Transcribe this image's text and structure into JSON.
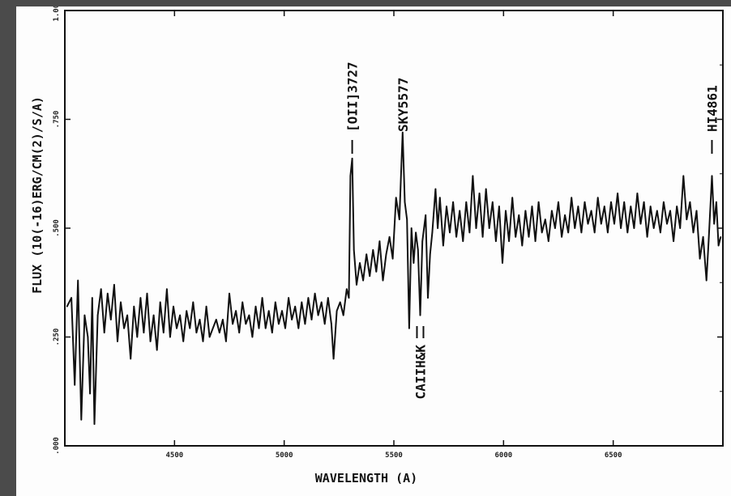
{
  "chart_data": {
    "type": "line",
    "title": "",
    "xlabel": "WAVELENGTH (A)",
    "ylabel": "FLUX (10(-16)ERG/CM(2)/S/A)",
    "xlim": [
      4000,
      7000
    ],
    "ylim": [
      0,
      1.0
    ],
    "xticks": [
      4500,
      5000,
      5500,
      6000,
      6500
    ],
    "xtick_labels": [
      "4500",
      "5000",
      "5500",
      "6000",
      "6500"
    ],
    "yticks": [
      0,
      0.25,
      0.5,
      0.75,
      1.0
    ],
    "ytick_labels": [
      ".000",
      ".250",
      ".500",
      ".750",
      "1.000"
    ],
    "grid": false,
    "line_color": "#111111",
    "annotations": [
      {
        "text": "[OII]3727",
        "x": 5310,
        "position": "above"
      },
      {
        "text": "SKY5577",
        "x": 5540,
        "position": "above"
      },
      {
        "text": "HI4861",
        "x": 6950,
        "position": "above"
      },
      {
        "text": "CAIIH&K",
        "x": 5620,
        "position": "below"
      }
    ],
    "series": [
      {
        "values": [
          [
            4010,
            0.32
          ],
          [
            4030,
            0.34
          ],
          [
            4045,
            0.14
          ],
          [
            4060,
            0.38
          ],
          [
            4075,
            0.06
          ],
          [
            4090,
            0.3
          ],
          [
            4105,
            0.25
          ],
          [
            4115,
            0.12
          ],
          [
            4125,
            0.34
          ],
          [
            4135,
            0.05
          ],
          [
            4150,
            0.3
          ],
          [
            4165,
            0.36
          ],
          [
            4180,
            0.26
          ],
          [
            4195,
            0.35
          ],
          [
            4210,
            0.29
          ],
          [
            4225,
            0.37
          ],
          [
            4240,
            0.24
          ],
          [
            4255,
            0.33
          ],
          [
            4270,
            0.27
          ],
          [
            4285,
            0.3
          ],
          [
            4300,
            0.2
          ],
          [
            4315,
            0.32
          ],
          [
            4330,
            0.25
          ],
          [
            4345,
            0.34
          ],
          [
            4360,
            0.26
          ],
          [
            4375,
            0.35
          ],
          [
            4390,
            0.24
          ],
          [
            4405,
            0.3
          ],
          [
            4420,
            0.22
          ],
          [
            4435,
            0.33
          ],
          [
            4450,
            0.26
          ],
          [
            4465,
            0.36
          ],
          [
            4480,
            0.25
          ],
          [
            4495,
            0.32
          ],
          [
            4510,
            0.27
          ],
          [
            4525,
            0.3
          ],
          [
            4540,
            0.24
          ],
          [
            4555,
            0.31
          ],
          [
            4570,
            0.27
          ],
          [
            4585,
            0.33
          ],
          [
            4600,
            0.26
          ],
          [
            4615,
            0.29
          ],
          [
            4630,
            0.24
          ],
          [
            4645,
            0.32
          ],
          [
            4660,
            0.25
          ],
          [
            4675,
            0.27
          ],
          [
            4690,
            0.29
          ],
          [
            4705,
            0.26
          ],
          [
            4720,
            0.29
          ],
          [
            4735,
            0.24
          ],
          [
            4750,
            0.35
          ],
          [
            4765,
            0.28
          ],
          [
            4780,
            0.31
          ],
          [
            4795,
            0.26
          ],
          [
            4810,
            0.33
          ],
          [
            4825,
            0.28
          ],
          [
            4840,
            0.3
          ],
          [
            4855,
            0.25
          ],
          [
            4870,
            0.32
          ],
          [
            4885,
            0.27
          ],
          [
            4900,
            0.34
          ],
          [
            4915,
            0.27
          ],
          [
            4930,
            0.31
          ],
          [
            4945,
            0.26
          ],
          [
            4960,
            0.33
          ],
          [
            4975,
            0.28
          ],
          [
            4990,
            0.31
          ],
          [
            5005,
            0.27
          ],
          [
            5020,
            0.34
          ],
          [
            5035,
            0.29
          ],
          [
            5050,
            0.32
          ],
          [
            5065,
            0.27
          ],
          [
            5080,
            0.33
          ],
          [
            5095,
            0.28
          ],
          [
            5110,
            0.34
          ],
          [
            5125,
            0.29
          ],
          [
            5140,
            0.35
          ],
          [
            5155,
            0.3
          ],
          [
            5170,
            0.33
          ],
          [
            5185,
            0.28
          ],
          [
            5200,
            0.34
          ],
          [
            5215,
            0.28
          ],
          [
            5225,
            0.2
          ],
          [
            5240,
            0.31
          ],
          [
            5255,
            0.33
          ],
          [
            5270,
            0.3
          ],
          [
            5285,
            0.36
          ],
          [
            5295,
            0.34
          ],
          [
            5302,
            0.62
          ],
          [
            5310,
            0.66
          ],
          [
            5318,
            0.45
          ],
          [
            5330,
            0.37
          ],
          [
            5345,
            0.42
          ],
          [
            5360,
            0.38
          ],
          [
            5375,
            0.44
          ],
          [
            5390,
            0.39
          ],
          [
            5405,
            0.45
          ],
          [
            5420,
            0.4
          ],
          [
            5435,
            0.47
          ],
          [
            5450,
            0.38
          ],
          [
            5465,
            0.44
          ],
          [
            5480,
            0.48
          ],
          [
            5495,
            0.43
          ],
          [
            5510,
            0.57
          ],
          [
            5525,
            0.52
          ],
          [
            5540,
            0.72
          ],
          [
            5550,
            0.56
          ],
          [
            5560,
            0.52
          ],
          [
            5570,
            0.27
          ],
          [
            5580,
            0.5
          ],
          [
            5590,
            0.42
          ],
          [
            5600,
            0.49
          ],
          [
            5610,
            0.45
          ],
          [
            5620,
            0.3
          ],
          [
            5630,
            0.47
          ],
          [
            5645,
            0.53
          ],
          [
            5655,
            0.34
          ],
          [
            5665,
            0.44
          ],
          [
            5675,
            0.49
          ],
          [
            5690,
            0.59
          ],
          [
            5700,
            0.5
          ],
          [
            5710,
            0.57
          ],
          [
            5725,
            0.46
          ],
          [
            5740,
            0.55
          ],
          [
            5755,
            0.49
          ],
          [
            5770,
            0.56
          ],
          [
            5785,
            0.48
          ],
          [
            5800,
            0.54
          ],
          [
            5815,
            0.47
          ],
          [
            5830,
            0.56
          ],
          [
            5845,
            0.49
          ],
          [
            5860,
            0.62
          ],
          [
            5875,
            0.5
          ],
          [
            5890,
            0.58
          ],
          [
            5905,
            0.48
          ],
          [
            5920,
            0.59
          ],
          [
            5935,
            0.5
          ],
          [
            5950,
            0.56
          ],
          [
            5965,
            0.47
          ],
          [
            5980,
            0.55
          ],
          [
            5995,
            0.42
          ],
          [
            6010,
            0.54
          ],
          [
            6025,
            0.47
          ],
          [
            6040,
            0.57
          ],
          [
            6055,
            0.48
          ],
          [
            6070,
            0.53
          ],
          [
            6085,
            0.46
          ],
          [
            6100,
            0.54
          ],
          [
            6115,
            0.48
          ],
          [
            6130,
            0.55
          ],
          [
            6145,
            0.47
          ],
          [
            6160,
            0.56
          ],
          [
            6175,
            0.49
          ],
          [
            6190,
            0.52
          ],
          [
            6205,
            0.47
          ],
          [
            6220,
            0.54
          ],
          [
            6235,
            0.5
          ],
          [
            6250,
            0.56
          ],
          [
            6265,
            0.48
          ],
          [
            6280,
            0.53
          ],
          [
            6295,
            0.49
          ],
          [
            6310,
            0.57
          ],
          [
            6325,
            0.5
          ],
          [
            6340,
            0.55
          ],
          [
            6355,
            0.49
          ],
          [
            6370,
            0.56
          ],
          [
            6385,
            0.51
          ],
          [
            6400,
            0.54
          ],
          [
            6415,
            0.49
          ],
          [
            6430,
            0.57
          ],
          [
            6445,
            0.51
          ],
          [
            6460,
            0.55
          ],
          [
            6475,
            0.49
          ],
          [
            6490,
            0.56
          ],
          [
            6505,
            0.51
          ],
          [
            6520,
            0.58
          ],
          [
            6535,
            0.5
          ],
          [
            6550,
            0.56
          ],
          [
            6565,
            0.49
          ],
          [
            6580,
            0.55
          ],
          [
            6595,
            0.5
          ],
          [
            6610,
            0.58
          ],
          [
            6625,
            0.51
          ],
          [
            6640,
            0.56
          ],
          [
            6655,
            0.48
          ],
          [
            6670,
            0.55
          ],
          [
            6685,
            0.5
          ],
          [
            6700,
            0.54
          ],
          [
            6715,
            0.49
          ],
          [
            6730,
            0.56
          ],
          [
            6745,
            0.51
          ],
          [
            6760,
            0.54
          ],
          [
            6775,
            0.47
          ],
          [
            6790,
            0.55
          ],
          [
            6805,
            0.5
          ],
          [
            6820,
            0.62
          ],
          [
            6835,
            0.52
          ],
          [
            6850,
            0.56
          ],
          [
            6865,
            0.49
          ],
          [
            6880,
            0.54
          ],
          [
            6895,
            0.43
          ],
          [
            6910,
            0.48
          ],
          [
            6925,
            0.38
          ],
          [
            6935,
            0.47
          ],
          [
            6950,
            0.62
          ],
          [
            6960,
            0.51
          ],
          [
            6970,
            0.56
          ],
          [
            6980,
            0.46
          ],
          [
            6990,
            0.48
          ]
        ]
      }
    ]
  }
}
